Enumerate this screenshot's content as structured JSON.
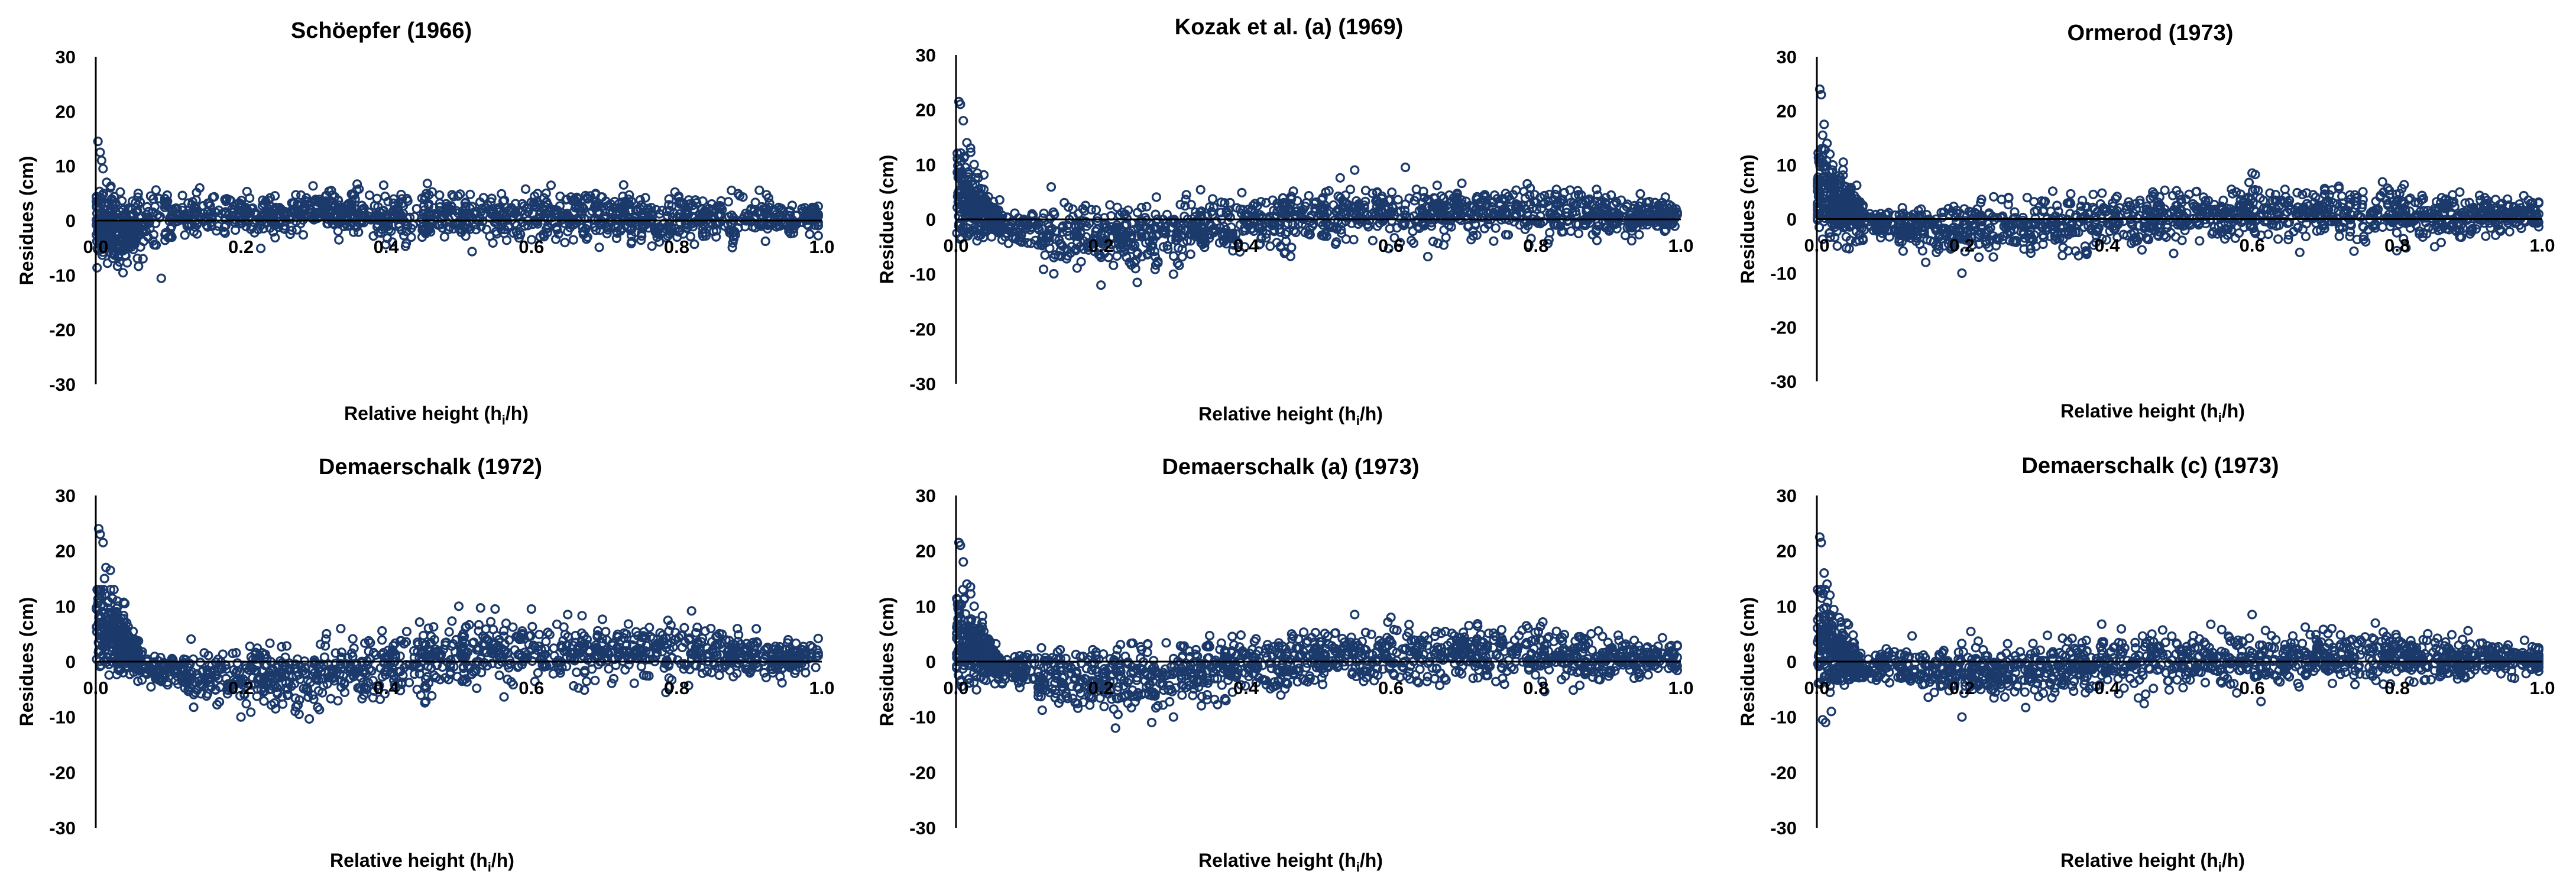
{
  "figure": {
    "marker_color": "#1b3a6b",
    "axis_color": "#000000"
  },
  "chart_data": [
    {
      "type": "scatter",
      "title": "Schöepfer (1966)",
      "xlabel": "Relative height (hi/h)",
      "xlabel_main": "Relative height (h",
      "xlabel_sub": "i",
      "xlabel_tail": "/h)",
      "ylabel": "Residues (cm)",
      "ylim": [
        -30,
        30
      ],
      "yticks": [
        30,
        20,
        10,
        0,
        -10,
        -20,
        -30
      ],
      "ytick_labels": [
        "30",
        "20",
        "10",
        "0",
        "-10",
        "-20",
        "-30"
      ],
      "xlim": [
        0,
        1
      ],
      "xticks": [
        0.0,
        0.2,
        0.4,
        0.6,
        0.8,
        1.0
      ],
      "xtick_labels": [
        "0.0",
        "0.2",
        "0.4",
        "0.6",
        "0.8",
        "1.0"
      ],
      "profile": {
        "base": [
          [
            0.0,
            0.0
          ],
          [
            0.03,
            -2.5
          ],
          [
            0.06,
            -1.0
          ],
          [
            0.12,
            1.0
          ],
          [
            0.3,
            1.5
          ],
          [
            0.5,
            0.8
          ],
          [
            0.8,
            0.5
          ],
          [
            1.0,
            0.5
          ]
        ],
        "spread": [
          [
            0.0,
            4.0
          ],
          [
            0.1,
            2.5
          ],
          [
            0.3,
            2.2
          ],
          [
            0.6,
            2.6
          ],
          [
            0.9,
            2.4
          ],
          [
            1.0,
            1.5
          ]
        ]
      },
      "peaks": [
        [
          0.003,
          14.5
        ],
        [
          0.006,
          12.5
        ],
        [
          0.01,
          9.5
        ],
        [
          0.015,
          7.0
        ],
        [
          0.02,
          6.0
        ],
        [
          0.008,
          11.0
        ],
        [
          0.012,
          -4.5
        ],
        [
          0.004,
          -5.5
        ],
        [
          0.065,
          -7.0
        ]
      ],
      "seed": 11
    },
    {
      "type": "scatter",
      "title": "Kozak et al. (a) (1969)",
      "xlabel": "Relative height (hi/h)",
      "xlabel_main": "Relative height (h",
      "xlabel_sub": "i",
      "xlabel_tail": "/h)",
      "ylabel": "Residues (cm)",
      "ylim": [
        -30,
        30
      ],
      "yticks": [
        30,
        20,
        10,
        0,
        -10,
        -20,
        -30
      ],
      "ytick_labels": [
        "30",
        "20",
        "10",
        "0",
        "-10",
        "-20",
        "-30"
      ],
      "xlim": [
        0,
        1
      ],
      "xticks": [
        0.0,
        0.2,
        0.4,
        0.6,
        0.8,
        1.0
      ],
      "xtick_labels": [
        "0.0",
        "0.2",
        "0.4",
        "0.6",
        "0.8",
        "1.0"
      ],
      "profile": {
        "base": [
          [
            0.0,
            5.0
          ],
          [
            0.03,
            2.0
          ],
          [
            0.06,
            -1.0
          ],
          [
            0.15,
            -3.0
          ],
          [
            0.25,
            -3.5
          ],
          [
            0.35,
            -1.5
          ],
          [
            0.5,
            0.5
          ],
          [
            0.7,
            1.5
          ],
          [
            0.9,
            0.8
          ],
          [
            1.0,
            0.3
          ]
        ],
        "spread": [
          [
            0.0,
            5.0
          ],
          [
            0.06,
            1.5
          ],
          [
            0.15,
            3.2
          ],
          [
            0.3,
            3.0
          ],
          [
            0.5,
            2.8
          ],
          [
            0.8,
            2.8
          ],
          [
            1.0,
            1.5
          ]
        ]
      },
      "peaks": [
        [
          0.004,
          21.5
        ],
        [
          0.006,
          21.0
        ],
        [
          0.01,
          18.0
        ],
        [
          0.015,
          14.0
        ],
        [
          0.02,
          13.0
        ],
        [
          0.025,
          10.0
        ],
        [
          0.012,
          11.5
        ],
        [
          0.3,
          -10.0
        ],
        [
          0.2,
          -12.0
        ],
        [
          0.25,
          -11.5
        ],
        [
          0.55,
          9.0
        ],
        [
          0.62,
          9.5
        ]
      ],
      "seed": 23
    },
    {
      "type": "scatter",
      "title": "Ormerod (1973)",
      "xlabel": "Relative height (hi/h)",
      "xlabel_main": "Relative height (h",
      "xlabel_sub": "i",
      "xlabel_tail": "/h)",
      "ylabel": "Residues (cm)",
      "ylim": [
        -30,
        30
      ],
      "yticks": [
        30,
        20,
        10,
        0,
        -10,
        -20,
        -30
      ],
      "ytick_labels": [
        "30",
        "20",
        "10",
        "0",
        "-10",
        "-20",
        "-30"
      ],
      "xlim": [
        0,
        1
      ],
      "xticks": [
        0.0,
        0.2,
        0.4,
        0.6,
        0.8,
        1.0
      ],
      "xtick_labels": [
        "0.0",
        "0.2",
        "0.4",
        "0.6",
        "0.8",
        "1.0"
      ],
      "profile": {
        "base": [
          [
            0.0,
            6.0
          ],
          [
            0.04,
            2.0
          ],
          [
            0.08,
            -1.0
          ],
          [
            0.2,
            -2.0
          ],
          [
            0.35,
            -1.0
          ],
          [
            0.5,
            0.5
          ],
          [
            0.7,
            1.0
          ],
          [
            0.9,
            0.5
          ],
          [
            1.0,
            0.5
          ]
        ],
        "spread": [
          [
            0.0,
            5.0
          ],
          [
            0.08,
            1.5
          ],
          [
            0.2,
            2.6
          ],
          [
            0.5,
            2.8
          ],
          [
            0.8,
            2.6
          ],
          [
            1.0,
            1.5
          ]
        ]
      },
      "peaks": [
        [
          0.004,
          24.0
        ],
        [
          0.006,
          23.0
        ],
        [
          0.01,
          17.5
        ],
        [
          0.014,
          14.0
        ],
        [
          0.018,
          12.0
        ],
        [
          0.022,
          10.0
        ],
        [
          0.008,
          15.5
        ],
        [
          0.03,
          8.0
        ],
        [
          0.2,
          -10.0
        ],
        [
          0.15,
          -8.0
        ],
        [
          0.6,
          8.5
        ]
      ],
      "seed": 37
    },
    {
      "type": "scatter",
      "title": "Demaerschalk (1972)",
      "xlabel": "Relative height (hi/h)",
      "xlabel_main": "Relative height (h",
      "xlabel_sub": "i",
      "xlabel_tail": "/h)",
      "ylabel": "Residues (cm)",
      "ylim": [
        -30,
        30
      ],
      "yticks": [
        30,
        20,
        10,
        0,
        -10,
        -20,
        -30
      ],
      "ytick_labels": [
        "30",
        "20",
        "10",
        "0",
        "-10",
        "-20",
        "-30"
      ],
      "xlim": [
        0,
        1
      ],
      "xticks": [
        0.0,
        0.2,
        0.4,
        0.6,
        0.8,
        1.0
      ],
      "xtick_labels": [
        "0.0",
        "0.2",
        "0.4",
        "0.6",
        "0.8",
        "1.0"
      ],
      "profile": {
        "base": [
          [
            0.0,
            8.0
          ],
          [
            0.03,
            4.0
          ],
          [
            0.07,
            -1.0
          ],
          [
            0.15,
            -3.0
          ],
          [
            0.25,
            -3.0
          ],
          [
            0.4,
            -1.0
          ],
          [
            0.55,
            1.5
          ],
          [
            0.75,
            2.0
          ],
          [
            0.9,
            1.0
          ],
          [
            1.0,
            0.5
          ]
        ],
        "spread": [
          [
            0.0,
            5.0
          ],
          [
            0.07,
            1.5
          ],
          [
            0.2,
            3.0
          ],
          [
            0.5,
            3.5
          ],
          [
            0.8,
            3.0
          ],
          [
            1.0,
            1.5
          ]
        ]
      },
      "peaks": [
        [
          0.004,
          24.0
        ],
        [
          0.006,
          23.0
        ],
        [
          0.01,
          21.5
        ],
        [
          0.014,
          17.0
        ],
        [
          0.02,
          16.5
        ],
        [
          0.025,
          13.0
        ],
        [
          0.012,
          15.0
        ],
        [
          0.04,
          10.5
        ],
        [
          0.55,
          9.5
        ],
        [
          0.6,
          9.5
        ],
        [
          0.5,
          10.0
        ],
        [
          0.65,
          8.5
        ],
        [
          0.2,
          -10.0
        ],
        [
          0.28,
          -9.5
        ]
      ],
      "seed": 41
    },
    {
      "type": "scatter",
      "title": "Demaerschalk (a) (1973)",
      "xlabel": "Relative height (hi/h)",
      "xlabel_main": "Relative height (h",
      "xlabel_sub": "i",
      "xlabel_tail": "/h)",
      "ylabel": "Residues (cm)",
      "ylim": [
        -30,
        30
      ],
      "yticks": [
        30,
        20,
        10,
        0,
        -10,
        -20,
        -30
      ],
      "ytick_labels": [
        "30",
        "20",
        "10",
        "0",
        "-10",
        "-20",
        "-30"
      ],
      "xlim": [
        0,
        1
      ],
      "xticks": [
        0.0,
        0.2,
        0.4,
        0.6,
        0.8,
        1.0
      ],
      "xtick_labels": [
        "0.0",
        "0.2",
        "0.4",
        "0.6",
        "0.8",
        "1.0"
      ],
      "profile": {
        "base": [
          [
            0.0,
            5.0
          ],
          [
            0.03,
            2.0
          ],
          [
            0.06,
            -1.0
          ],
          [
            0.15,
            -3.0
          ],
          [
            0.25,
            -3.5
          ],
          [
            0.35,
            -1.5
          ],
          [
            0.5,
            0.5
          ],
          [
            0.7,
            1.5
          ],
          [
            0.9,
            0.8
          ],
          [
            1.0,
            0.3
          ]
        ],
        "spread": [
          [
            0.0,
            5.0
          ],
          [
            0.06,
            1.5
          ],
          [
            0.15,
            3.2
          ],
          [
            0.3,
            3.0
          ],
          [
            0.5,
            2.8
          ],
          [
            0.8,
            2.8
          ],
          [
            1.0,
            1.5
          ]
        ]
      },
      "peaks": [
        [
          0.004,
          21.5
        ],
        [
          0.006,
          21.0
        ],
        [
          0.01,
          18.0
        ],
        [
          0.015,
          14.0
        ],
        [
          0.02,
          13.5
        ],
        [
          0.025,
          10.0
        ],
        [
          0.012,
          11.5
        ],
        [
          0.22,
          -12.0
        ],
        [
          0.27,
          -11.0
        ],
        [
          0.3,
          -10.0
        ],
        [
          0.55,
          8.5
        ],
        [
          0.6,
          8.0
        ]
      ],
      "seed": 53
    },
    {
      "type": "scatter",
      "title": "Demaerschalk (c) (1973)",
      "xlabel": "Relative height (hi/h)",
      "xlabel_main": "Relative height (h",
      "xlabel_sub": "i",
      "xlabel_tail": "/h)",
      "ylabel": "Residues (cm)",
      "ylim": [
        -30,
        30
      ],
      "yticks": [
        30,
        20,
        10,
        0,
        -10,
        -20,
        -30
      ],
      "ytick_labels": [
        "30",
        "20",
        "10",
        "0",
        "-10",
        "-20",
        "-30"
      ],
      "xlim": [
        0,
        1
      ],
      "xticks": [
        0.0,
        0.2,
        0.4,
        0.6,
        0.8,
        1.0
      ],
      "xtick_labels": [
        "0.0",
        "0.2",
        "0.4",
        "0.6",
        "0.8",
        "1.0"
      ],
      "profile": {
        "base": [
          [
            0.0,
            4.0
          ],
          [
            0.03,
            1.5
          ],
          [
            0.06,
            -1.0
          ],
          [
            0.2,
            -2.0
          ],
          [
            0.35,
            -1.0
          ],
          [
            0.5,
            0.5
          ],
          [
            0.7,
            1.0
          ],
          [
            0.9,
            0.5
          ],
          [
            1.0,
            0.5
          ]
        ],
        "spread": [
          [
            0.0,
            6.0
          ],
          [
            0.06,
            1.5
          ],
          [
            0.2,
            2.6
          ],
          [
            0.5,
            2.8
          ],
          [
            0.8,
            2.6
          ],
          [
            1.0,
            1.5
          ]
        ]
      },
      "peaks": [
        [
          0.004,
          22.5
        ],
        [
          0.006,
          21.5
        ],
        [
          0.01,
          16.0
        ],
        [
          0.014,
          14.0
        ],
        [
          0.018,
          12.0
        ],
        [
          0.02,
          -9.0
        ],
        [
          0.008,
          -10.5
        ],
        [
          0.012,
          -11.0
        ],
        [
          0.006,
          13.0
        ],
        [
          0.6,
          8.5
        ],
        [
          0.2,
          -10.0
        ]
      ],
      "seed": 67
    }
  ]
}
